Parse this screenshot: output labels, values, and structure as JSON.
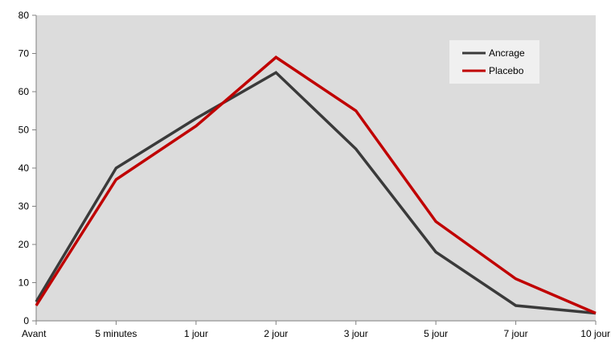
{
  "chart_data": {
    "type": "line",
    "title": "",
    "xlabel": "",
    "ylabel": "",
    "categories": [
      "Avant",
      "5 minutes",
      "1 jour",
      "2 jour",
      "3 jour",
      "5 jour",
      "7 jour",
      "10 jour"
    ],
    "ylim": [
      0,
      80
    ],
    "yticks": [
      0,
      10,
      20,
      30,
      40,
      50,
      60,
      70,
      80
    ],
    "grid": false,
    "legend_position": "top-right",
    "series": [
      {
        "name": "Ancrage",
        "color": "#3a3a3a",
        "values": [
          5,
          40,
          53,
          65,
          45,
          18,
          4,
          2
        ]
      },
      {
        "name": "Placebo",
        "color": "#c00000",
        "values": [
          4,
          37,
          51,
          69,
          55,
          26,
          11,
          2
        ]
      }
    ],
    "plot_background": "#dcdcdc"
  }
}
